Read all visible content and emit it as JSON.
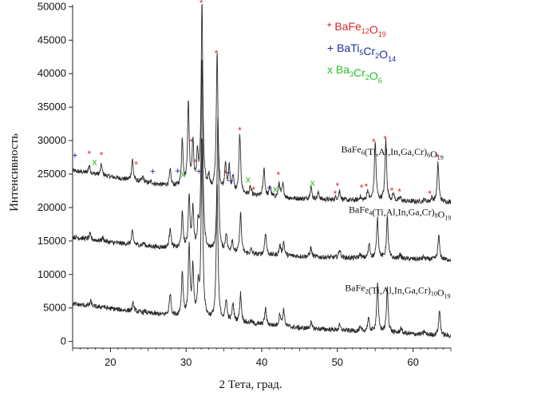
{
  "chart_data": {
    "type": "line",
    "xlabel": "2 Тета, град.",
    "ylabel": "Интенсивность",
    "xlim": [
      15,
      65
    ],
    "ylim": [
      -1000,
      51000
    ],
    "xticks": [
      20,
      30,
      40,
      50,
      60
    ],
    "yticks": [
      0,
      5000,
      10000,
      15000,
      20000,
      25000,
      30000,
      35000,
      40000,
      45000,
      50000
    ],
    "grid": false,
    "legend": {
      "placement": "top-right",
      "entries": [
        {
          "symbol": "*",
          "color": "#d42a2a",
          "formula": [
            {
              "t": "BaFe"
            },
            {
              "s": "12"
            },
            {
              "t": "O"
            },
            {
              "s": "19"
            }
          ]
        },
        {
          "symbol": "+",
          "color": "#1f2d9e",
          "formula": [
            {
              "t": "BaTi"
            },
            {
              "s": "5"
            },
            {
              "t": "Cr"
            },
            {
              "s": "2"
            },
            {
              "t": "O"
            },
            {
              "s": "14"
            }
          ]
        },
        {
          "symbol": "x",
          "color": "#27c027",
          "formula": [
            {
              "t": "Ba"
            },
            {
              "s": "3"
            },
            {
              "t": "Cr"
            },
            {
              "s": "2"
            },
            {
              "t": "O"
            },
            {
              "s": "6"
            }
          ]
        }
      ]
    },
    "series": [
      {
        "label": [
          {
            "t": "BaFe"
          },
          {
            "s": "6"
          },
          {
            "t": "(Ti,Al,In,Ga,Cr)"
          },
          {
            "s": "6"
          },
          {
            "t": "O"
          },
          {
            "s": "19"
          }
        ],
        "label_at": [
          50.5,
          28200
        ],
        "baseline": [
          [
            15,
            25500
          ],
          [
            20,
            24600
          ],
          [
            25,
            23600
          ],
          [
            30,
            22900
          ],
          [
            35,
            22200
          ],
          [
            40,
            21600
          ],
          [
            45,
            21300
          ],
          [
            50,
            21100
          ],
          [
            55,
            21000
          ],
          [
            60,
            20900
          ],
          [
            65,
            20800
          ]
        ],
        "peaks": [
          [
            17.2,
            26300
          ],
          [
            18.8,
            26400
          ],
          [
            22.9,
            27200
          ],
          [
            24.3,
            24600
          ],
          [
            25.4,
            23900
          ],
          [
            27.9,
            25500
          ],
          [
            29.5,
            30000
          ],
          [
            30.3,
            35300
          ],
          [
            30.9,
            29500
          ],
          [
            31.5,
            27500
          ],
          [
            32.1,
            50300
          ],
          [
            33.0,
            24500
          ],
          [
            34.1,
            43000
          ],
          [
            35.2,
            26500
          ],
          [
            35.7,
            25800
          ],
          [
            36.2,
            24500
          ],
          [
            37.1,
            30800
          ],
          [
            38.5,
            23000
          ],
          [
            40.3,
            25900
          ],
          [
            41.1,
            23100
          ],
          [
            42.3,
            23600
          ],
          [
            42.8,
            23400
          ],
          [
            46.5,
            23200
          ],
          [
            47.5,
            22200
          ],
          [
            49.8,
            21500
          ],
          [
            50.3,
            22500
          ],
          [
            53.0,
            21600
          ],
          [
            54.0,
            22500
          ],
          [
            55.0,
            29800
          ],
          [
            56.4,
            30000
          ],
          [
            57.4,
            22000
          ],
          [
            58.3,
            21500
          ],
          [
            61.5,
            21200
          ],
          [
            62.5,
            21400
          ],
          [
            63.3,
            26700
          ]
        ]
      },
      {
        "label": [
          {
            "t": "BaFe"
          },
          {
            "s": "4"
          },
          {
            "t": "(Ti,Al,In,Ga,Cr)"
          },
          {
            "s": "8"
          },
          {
            "t": "O"
          },
          {
            "s": "19"
          }
        ],
        "label_at": [
          51.5,
          19200
        ],
        "baseline": [
          [
            15,
            15600
          ],
          [
            20,
            14800
          ],
          [
            25,
            14200
          ],
          [
            30,
            13700
          ],
          [
            35,
            13200
          ],
          [
            40,
            12900
          ],
          [
            45,
            12700
          ],
          [
            50,
            12500
          ],
          [
            55,
            12400
          ],
          [
            60,
            12300
          ],
          [
            65,
            12200
          ]
        ],
        "peaks": [
          [
            17.3,
            16000
          ],
          [
            19.0,
            15500
          ],
          [
            22.9,
            16400
          ],
          [
            24.4,
            14700
          ],
          [
            27.9,
            17100
          ],
          [
            29.5,
            19000
          ],
          [
            30.4,
            21600
          ],
          [
            30.9,
            19600
          ],
          [
            31.6,
            16800
          ],
          [
            32.1,
            42000
          ],
          [
            34.2,
            33000
          ],
          [
            35.3,
            16000
          ],
          [
            36.1,
            15000
          ],
          [
            37.2,
            19200
          ],
          [
            38.6,
            13700
          ],
          [
            40.5,
            16300
          ],
          [
            42.4,
            14300
          ],
          [
            42.9,
            14800
          ],
          [
            46.5,
            14000
          ],
          [
            50.3,
            13800
          ],
          [
            53.0,
            13000
          ],
          [
            54.2,
            14500
          ],
          [
            55.3,
            18500
          ],
          [
            56.6,
            18500
          ],
          [
            58.3,
            13000
          ],
          [
            61.4,
            12600
          ],
          [
            63.4,
            15800
          ]
        ]
      },
      {
        "label": [
          {
            "t": "BaFe"
          },
          {
            "s": "2"
          },
          {
            "t": "(Ti,Al,In,Ga,Cr)"
          },
          {
            "s": "10"
          },
          {
            "t": "O"
          },
          {
            "s": "19"
          }
        ],
        "label_at": [
          51.0,
          7500
        ],
        "baseline": [
          [
            15,
            5600
          ],
          [
            20,
            4900
          ],
          [
            25,
            4200
          ],
          [
            30,
            3600
          ],
          [
            35,
            3000
          ],
          [
            40,
            2500
          ],
          [
            45,
            2000
          ],
          [
            50,
            1700
          ],
          [
            55,
            1400
          ],
          [
            60,
            1100
          ],
          [
            65,
            800
          ]
        ],
        "peaks": [
          [
            17.4,
            6000
          ],
          [
            19.0,
            5300
          ],
          [
            23.0,
            5700
          ],
          [
            24.6,
            4500
          ],
          [
            27.9,
            7200
          ],
          [
            29.5,
            10300
          ],
          [
            30.4,
            14000
          ],
          [
            30.9,
            10700
          ],
          [
            31.6,
            7800
          ],
          [
            32.1,
            30000
          ],
          [
            34.1,
            23500
          ],
          [
            35.3,
            6200
          ],
          [
            36.2,
            5600
          ],
          [
            37.2,
            7100
          ],
          [
            38.6,
            3000
          ],
          [
            40.5,
            4900
          ],
          [
            42.4,
            4100
          ],
          [
            42.9,
            4700
          ],
          [
            46.5,
            2800
          ],
          [
            50.3,
            2400
          ],
          [
            53.0,
            2000
          ],
          [
            54.1,
            3400
          ],
          [
            55.3,
            8600
          ],
          [
            56.6,
            7900
          ],
          [
            58.4,
            2000
          ],
          [
            61.5,
            1500
          ],
          [
            63.5,
            4700
          ]
        ]
      }
    ],
    "phase_markers": [
      {
        "symbol": "+",
        "x": 15.3,
        "y": 27800
      },
      {
        "symbol": "*",
        "x": 17.2,
        "y": 28000
      },
      {
        "symbol": "*",
        "x": 18.8,
        "y": 27800
      },
      {
        "symbol": "x",
        "x": 17.9,
        "y": 26800
      },
      {
        "symbol": "*",
        "x": 23.4,
        "y": 26400
      },
      {
        "symbol": "+",
        "x": 25.6,
        "y": 25400
      },
      {
        "symbol": "+",
        "x": 28.9,
        "y": 25500
      },
      {
        "symbol": "x",
        "x": 29.6,
        "y": 25000
      },
      {
        "symbol": "*",
        "x": 30.7,
        "y": 29800
      },
      {
        "symbol": "*",
        "x": 31.2,
        "y": 26700
      },
      {
        "symbol": "+",
        "x": 31.7,
        "y": 25400
      },
      {
        "symbol": "*",
        "x": 32.0,
        "y": 50500
      },
      {
        "symbol": "*",
        "x": 34.0,
        "y": 43000
      },
      {
        "symbol": "*",
        "x": 35.2,
        "y": 25000
      },
      {
        "symbol": "+",
        "x": 35.6,
        "y": 25200
      },
      {
        "symbol": "+",
        "x": 35.9,
        "y": 24000
      },
      {
        "symbol": "*",
        "x": 37.1,
        "y": 31500
      },
      {
        "symbol": "x",
        "x": 38.2,
        "y": 24200
      },
      {
        "symbol": "*",
        "x": 38.9,
        "y": 22600
      },
      {
        "symbol": "+",
        "x": 41.0,
        "y": 23000
      },
      {
        "symbol": "x",
        "x": 41.8,
        "y": 22800
      },
      {
        "symbol": "*",
        "x": 42.2,
        "y": 24800
      },
      {
        "symbol": "x",
        "x": 46.7,
        "y": 23700
      },
      {
        "symbol": "*",
        "x": 49.7,
        "y": 22000
      },
      {
        "symbol": "*",
        "x": 50.0,
        "y": 23200
      },
      {
        "symbol": "*",
        "x": 53.2,
        "y": 22900
      },
      {
        "symbol": "*",
        "x": 53.8,
        "y": 23100
      },
      {
        "symbol": "*",
        "x": 54.8,
        "y": 29800
      },
      {
        "symbol": "*",
        "x": 56.3,
        "y": 30200
      },
      {
        "symbol": "*",
        "x": 57.2,
        "y": 22500
      },
      {
        "symbol": "*",
        "x": 58.2,
        "y": 22300
      },
      {
        "symbol": "*",
        "x": 62.2,
        "y": 22000
      },
      {
        "symbol": "*",
        "x": 63.2,
        "y": 27500
      }
    ]
  }
}
